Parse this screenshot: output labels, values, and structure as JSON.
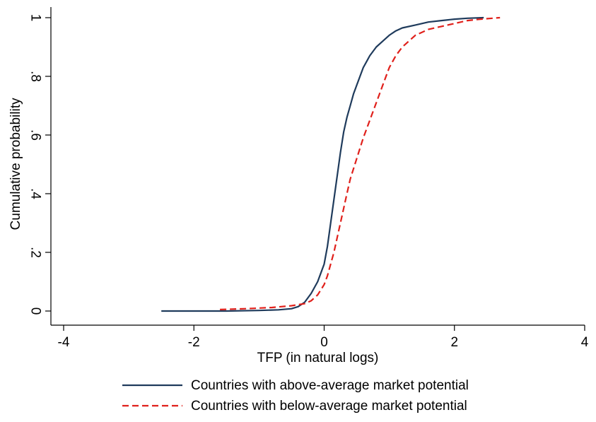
{
  "chart_data": {
    "type": "line",
    "title": "",
    "xlabel": "TFP (in natural logs)",
    "ylabel": "Cumulative probability",
    "xlim": [
      -4,
      4
    ],
    "ylim": [
      0,
      1
    ],
    "x_ticks": [
      -4,
      -2,
      0,
      2,
      4
    ],
    "x_tick_labels": [
      "-4",
      "-2",
      "0",
      "2",
      "4"
    ],
    "y_ticks": [
      0,
      0.2,
      0.4,
      0.6,
      0.8,
      1
    ],
    "y_tick_labels": [
      "0",
      ".2",
      ".4",
      ".6",
      ".8",
      "1"
    ],
    "grid": false,
    "legend_position": "bottom",
    "series": [
      {
        "name": "Countries with above-average market potential",
        "color": "#1f3b5c",
        "style": "solid",
        "x": [
          -2.5,
          -1.5,
          -1.0,
          -0.7,
          -0.5,
          -0.4,
          -0.3,
          -0.2,
          -0.1,
          0.0,
          0.05,
          0.1,
          0.15,
          0.2,
          0.25,
          0.3,
          0.35,
          0.4,
          0.45,
          0.5,
          0.55,
          0.6,
          0.65,
          0.7,
          0.8,
          0.9,
          1.0,
          1.1,
          1.2,
          1.4,
          1.6,
          1.8,
          2.0,
          2.2,
          2.45
        ],
        "y": [
          0.0,
          0.0,
          0.002,
          0.004,
          0.008,
          0.015,
          0.03,
          0.06,
          0.1,
          0.16,
          0.22,
          0.3,
          0.38,
          0.46,
          0.54,
          0.61,
          0.66,
          0.7,
          0.74,
          0.77,
          0.8,
          0.83,
          0.85,
          0.87,
          0.9,
          0.92,
          0.94,
          0.955,
          0.965,
          0.975,
          0.985,
          0.99,
          0.995,
          0.998,
          1.0
        ]
      },
      {
        "name": "Countries with below-average market potential",
        "color": "#e0201b",
        "style": "dashed",
        "x": [
          -1.6,
          -1.2,
          -0.8,
          -0.5,
          -0.3,
          -0.2,
          -0.1,
          0.0,
          0.05,
          0.1,
          0.15,
          0.2,
          0.25,
          0.3,
          0.35,
          0.4,
          0.5,
          0.6,
          0.7,
          0.8,
          0.9,
          1.0,
          1.1,
          1.2,
          1.3,
          1.4,
          1.6,
          1.8,
          2.0,
          2.2,
          2.4,
          2.7
        ],
        "y": [
          0.005,
          0.008,
          0.012,
          0.018,
          0.025,
          0.035,
          0.055,
          0.09,
          0.12,
          0.16,
          0.2,
          0.25,
          0.3,
          0.35,
          0.4,
          0.45,
          0.52,
          0.59,
          0.65,
          0.71,
          0.77,
          0.83,
          0.87,
          0.9,
          0.92,
          0.94,
          0.96,
          0.97,
          0.98,
          0.99,
          0.995,
          1.0
        ]
      }
    ]
  }
}
